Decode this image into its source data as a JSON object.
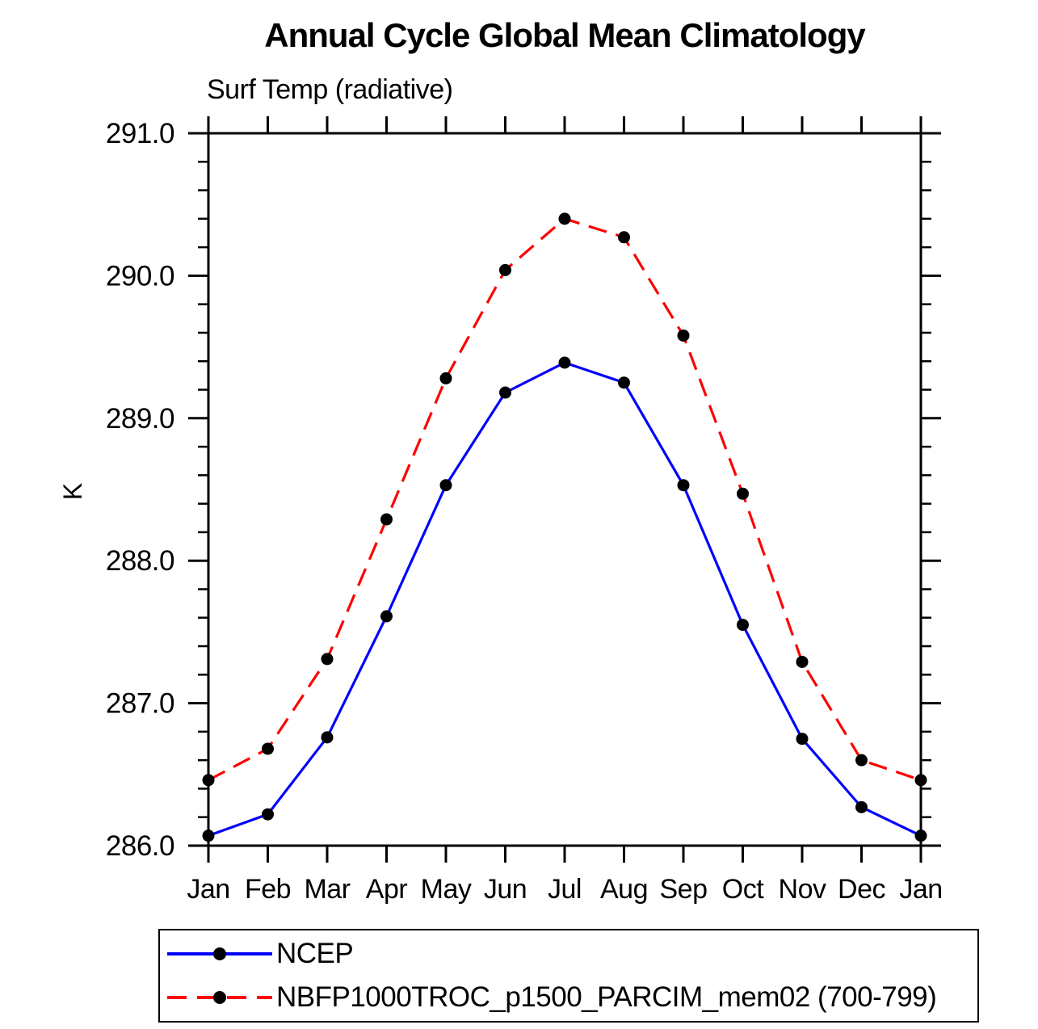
{
  "chart_data": {
    "type": "line",
    "title": "Annual Cycle Global Mean Climatology",
    "subtitle": "Surf Temp (radiative)",
    "ylabel": "K",
    "xlabel": "",
    "x_labels": [
      "Jan",
      "Feb",
      "Mar",
      "Apr",
      "May",
      "Jun",
      "Jul",
      "Aug",
      "Sep",
      "Oct",
      "Nov",
      "Dec",
      "Jan"
    ],
    "ylim": [
      286.0,
      291.0
    ],
    "y_ticks": [
      {
        "value": 286.0,
        "label": "286.0"
      },
      {
        "value": 287.0,
        "label": "287.0"
      },
      {
        "value": 288.0,
        "label": "288.0"
      },
      {
        "value": 289.0,
        "label": "289.0"
      },
      {
        "value": 290.0,
        "label": "290.0"
      },
      {
        "value": 291.0,
        "label": "291.0"
      }
    ],
    "y_minor_step": 0.2,
    "grid": false,
    "legend_position": "bottom-left",
    "frame_color": "#000000",
    "series": [
      {
        "name": "NCEP",
        "color": "#0000ff",
        "line_style": "solid",
        "marker": "circle",
        "marker_color": "#000000",
        "values": [
          286.07,
          286.22,
          286.76,
          287.61,
          288.53,
          289.18,
          289.39,
          289.25,
          288.53,
          287.55,
          286.75,
          286.27,
          286.07
        ]
      },
      {
        "name": "NBFP1000TROC_p1500_PARCIM_mem02 (700-799)",
        "color": "#ff0000",
        "line_style": "dashed",
        "marker": "circle",
        "marker_color": "#000000",
        "values": [
          286.46,
          286.68,
          287.31,
          288.29,
          289.28,
          290.04,
          290.4,
          290.27,
          289.58,
          288.47,
          287.29,
          286.6,
          286.46
        ]
      }
    ]
  }
}
